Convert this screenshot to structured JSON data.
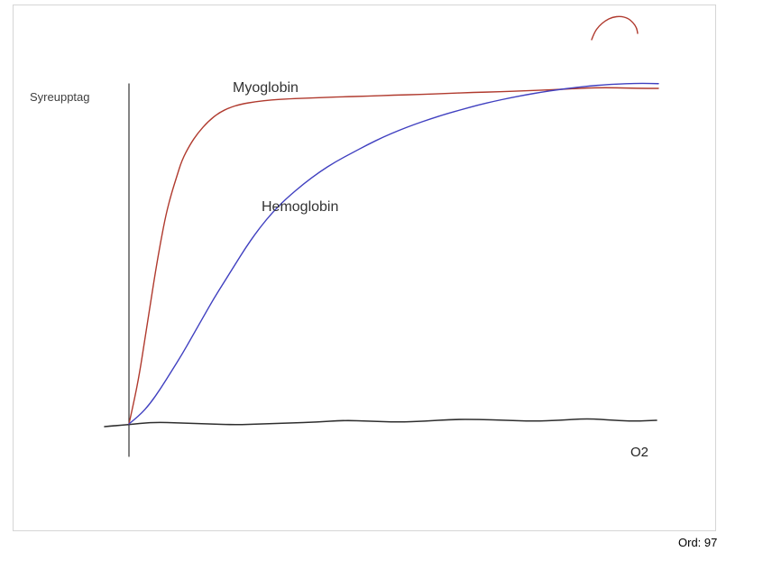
{
  "canvas": {
    "background": "#ffffff",
    "border_color": "#d5d5d5"
  },
  "status": {
    "word_count": "Ord: 97"
  },
  "chart_data": {
    "type": "line",
    "title": "",
    "xlabel": "O2",
    "ylabel": "Syreupptag",
    "x_range": [
      0,
      100
    ],
    "y_range": [
      0,
      100
    ],
    "grid": false,
    "legend_position": "inline-labels",
    "annotations": [
      "Myoglobin",
      "Hemoglobin",
      "Syreupptag",
      "O2"
    ],
    "series": [
      {
        "name": "Myoglobin",
        "color": "#b03a2e",
        "width": 1.4,
        "points": [
          [
            0,
            0
          ],
          [
            1,
            7
          ],
          [
            2,
            15
          ],
          [
            3,
            25
          ],
          [
            4,
            35
          ],
          [
            5,
            45
          ],
          [
            6,
            54
          ],
          [
            7,
            62
          ],
          [
            8,
            68
          ],
          [
            9,
            73
          ],
          [
            10,
            78
          ],
          [
            11.5,
            82.5
          ],
          [
            13,
            86
          ],
          [
            15,
            89.5
          ],
          [
            17,
            92
          ],
          [
            19,
            93.5
          ],
          [
            21,
            94.5
          ],
          [
            24,
            95.3
          ],
          [
            27,
            95.8
          ],
          [
            30,
            96.1
          ],
          [
            35,
            96.4
          ],
          [
            40,
            96.7
          ],
          [
            45,
            96.9
          ],
          [
            50,
            97.2
          ],
          [
            55,
            97.4
          ],
          [
            60,
            97.7
          ],
          [
            65,
            98.0
          ],
          [
            70,
            98.2
          ],
          [
            75,
            98.5
          ],
          [
            80,
            98.8
          ],
          [
            85,
            99.2
          ],
          [
            88,
            99.4
          ],
          [
            92,
            99.4
          ],
          [
            96,
            99.2
          ],
          [
            100,
            99.2
          ]
        ]
      },
      {
        "name": "Hemoglobin",
        "color": "#4040c0",
        "width": 1.4,
        "points": [
          [
            0,
            0
          ],
          [
            2,
            2.5
          ],
          [
            4,
            6
          ],
          [
            6,
            10.5
          ],
          [
            8,
            15.5
          ],
          [
            10,
            20.5
          ],
          [
            12,
            26
          ],
          [
            14,
            31.5
          ],
          [
            16,
            37
          ],
          [
            18,
            42
          ],
          [
            20,
            47
          ],
          [
            22,
            52
          ],
          [
            24,
            56.5
          ],
          [
            26,
            60.5
          ],
          [
            28,
            64
          ],
          [
            30,
            67
          ],
          [
            33,
            71
          ],
          [
            36,
            74.5
          ],
          [
            39,
            77.5
          ],
          [
            42,
            80
          ],
          [
            45,
            82.5
          ],
          [
            48,
            84.8
          ],
          [
            51,
            86.8
          ],
          [
            54,
            88.6
          ],
          [
            57,
            90.2
          ],
          [
            60,
            91.7
          ],
          [
            63,
            93
          ],
          [
            66,
            94.3
          ],
          [
            69,
            95.4
          ],
          [
            72,
            96.4
          ],
          [
            75,
            97.3
          ],
          [
            78,
            98.1
          ],
          [
            81,
            98.8
          ],
          [
            84,
            99.4
          ],
          [
            87,
            99.9
          ],
          [
            90,
            100.3
          ],
          [
            94,
            100.6
          ],
          [
            97,
            100.7
          ],
          [
            100,
            100.6
          ]
        ]
      }
    ],
    "layout_hints": {
      "x0": 128,
      "x1": 715,
      "y0": 464,
      "y1": 89
    }
  },
  "strokes": [
    {
      "name": "y-axis-line",
      "color": "#333333",
      "width": 1.2,
      "points": [
        [
          128,
          87
        ],
        [
          128,
          500
        ]
      ]
    },
    {
      "name": "x-axis-baseline",
      "color": "#2e2e2e",
      "width": 1.6,
      "points": [
        [
          101,
          467
        ],
        [
          125,
          465
        ],
        [
          155,
          462
        ],
        [
          186,
          463
        ],
        [
          216,
          464
        ],
        [
          246,
          465
        ],
        [
          276,
          464
        ],
        [
          306,
          463
        ],
        [
          336,
          462
        ],
        [
          366,
          460
        ],
        [
          396,
          461
        ],
        [
          426,
          462
        ],
        [
          456,
          461
        ],
        [
          486,
          459
        ],
        [
          516,
          459
        ],
        [
          546,
          460
        ],
        [
          576,
          461
        ],
        [
          606,
          460
        ],
        [
          636,
          458
        ],
        [
          666,
          460
        ],
        [
          688,
          461
        ],
        [
          713,
          460
        ]
      ]
    },
    {
      "name": "red-arc-stroke",
      "color": "#b03a2e",
      "width": 1.4,
      "points": [
        [
          641,
          38
        ],
        [
          644,
          30
        ],
        [
          649,
          23
        ],
        [
          656,
          17
        ],
        [
          664,
          13
        ],
        [
          673,
          12
        ],
        [
          681,
          14
        ],
        [
          687,
          19
        ],
        [
          691,
          25
        ],
        [
          692,
          31
        ]
      ]
    }
  ]
}
